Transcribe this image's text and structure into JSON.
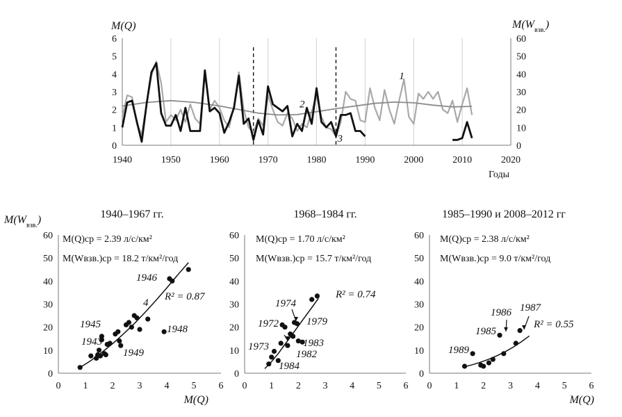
{
  "chart_data": [
    {
      "type": "line",
      "xlabel": "Годы",
      "ylabel_left": "M(Q)",
      "ylabel_right": "M(W",
      "ylabel_right_sub": "взв.",
      "ylabel_right_close": ")",
      "xlim": [
        1940,
        2020
      ],
      "xticks": [
        "1940",
        "1950",
        "1960",
        "1970",
        "1980",
        "1990",
        "2000",
        "2010",
        "2020"
      ],
      "ylim_left": [
        0,
        6
      ],
      "yticks_left": [
        "0",
        "1",
        "2",
        "3",
        "4",
        "5",
        "6"
      ],
      "ylim_right": [
        0,
        60
      ],
      "yticks_right": [
        "0",
        "10",
        "20",
        "30",
        "40",
        "50",
        "60"
      ],
      "grid": "vertical",
      "markers": [
        1967,
        1984
      ],
      "curve_labels": [
        "1",
        "2",
        "3"
      ],
      "series": [
        {
          "id": "1",
          "color": "#a9a9a9",
          "axis": "left",
          "x": [
            1940,
            1941,
            1942,
            1943,
            1944,
            1945,
            1946,
            1947,
            1948,
            1949,
            1950,
            1951,
            1952,
            1953,
            1954,
            1955,
            1956,
            1957,
            1958,
            1959,
            1960,
            1961,
            1962,
            1963,
            1964,
            1965,
            1966,
            1967,
            1968,
            1969,
            1970,
            1971,
            1972,
            1973,
            1974,
            1975,
            1976,
            1977,
            1978,
            1979,
            1980,
            1981,
            1982,
            1983,
            1984,
            1985,
            1986,
            1987,
            1988,
            1989,
            1990,
            1991,
            1992,
            1993,
            1994,
            1995,
            1996,
            1997,
            1998,
            1999,
            2000,
            2001,
            2002,
            2003,
            2004,
            2005,
            2006,
            2007,
            2008,
            2009,
            2010,
            2011,
            2012
          ],
          "values": [
            1.6,
            2.8,
            2.7,
            1.2,
            0.6,
            2.3,
            3.9,
            4.7,
            3.5,
            1.3,
            1.7,
            1.4,
            2.0,
            1.3,
            2.3,
            1.5,
            1.2,
            4.0,
            2.0,
            2.5,
            2.1,
            1.4,
            1.0,
            2.2,
            4.1,
            2.0,
            1.0,
            0.7,
            1.5,
            1.1,
            2.8,
            2.0,
            1.3,
            1.1,
            1.8,
            1.5,
            0.8,
            1.2,
            1.0,
            1.9,
            2.8,
            1.6,
            1.0,
            0.9,
            0.5,
            1.3,
            3.0,
            2.6,
            2.5,
            1.4,
            1.3,
            3.2,
            2.1,
            1.4,
            3.1,
            2.0,
            1.2,
            2.5,
            3.7,
            1.6,
            1.2,
            2.9,
            2.6,
            3.0,
            2.6,
            3.0,
            2.0,
            1.8,
            2.5,
            1.3,
            2.3,
            3.2,
            1.7
          ]
        },
        {
          "id": "2",
          "color": "#8a8a8a",
          "axis": "left",
          "x": [
            1940,
            1945,
            1950,
            1955,
            1960,
            1965,
            1968,
            1972,
            1976,
            1980,
            1984,
            1988,
            1992,
            1996,
            2000,
            2004,
            2008,
            2012
          ],
          "values": [
            2.2,
            2.4,
            2.5,
            2.4,
            2.2,
            1.95,
            1.8,
            1.7,
            1.72,
            1.88,
            2.05,
            2.2,
            2.35,
            2.42,
            2.38,
            2.25,
            2.15,
            2.18
          ]
        },
        {
          "id": "3",
          "color": "#111111",
          "axis": "left",
          "x": [
            1940,
            1941,
            1942,
            1943,
            1944,
            1945,
            1946,
            1947,
            1948,
            1949,
            1950,
            1951,
            1952,
            1953,
            1954,
            1955,
            1956,
            1957,
            1958,
            1959,
            1960,
            1961,
            1962,
            1963,
            1964,
            1965,
            1966,
            1967,
            1968,
            1969,
            1970,
            1971,
            1972,
            1973,
            1974,
            1975,
            1976,
            1977,
            1978,
            1979,
            1980,
            1981,
            1982,
            1983,
            1984,
            1985,
            1986,
            1987,
            1988,
            1989,
            1990
          ],
          "values": [
            1.0,
            2.4,
            2.5,
            1.3,
            0.2,
            2.3,
            4.1,
            4.6,
            1.8,
            1.1,
            1.1,
            1.7,
            0.8,
            2.1,
            0.8,
            0.8,
            0.8,
            4.2,
            1.9,
            2.1,
            1.8,
            0.7,
            1.3,
            2.1,
            3.9,
            1.2,
            1.5,
            0.3,
            1.4,
            0.6,
            3.3,
            2.3,
            2.1,
            1.9,
            2.2,
            0.5,
            1.2,
            0.8,
            2.1,
            1.2,
            3.2,
            1.3,
            1.0,
            1.3,
            0.5,
            1.7,
            1.7,
            1.8,
            0.8,
            0.8,
            0.5
          ]
        },
        {
          "id": "3b",
          "color": "#111111",
          "axis": "left",
          "x": [
            2008,
            2009,
            2010,
            2011,
            2012
          ],
          "values": [
            0.3,
            0.3,
            0.4,
            1.3,
            0.4
          ]
        }
      ]
    },
    {
      "type": "scatter",
      "title": "1940–1967 гг.",
      "xlabel": "M(Q)",
      "ylabel": "M(W",
      "ylabel_sub": "взв.",
      "ylabel_close": ")",
      "xlim": [
        0,
        6
      ],
      "ylim": [
        0,
        60
      ],
      "xticks": [
        "0",
        "1",
        "2",
        "3",
        "4",
        "5",
        "6"
      ],
      "yticks": [
        "0",
        "10",
        "20",
        "30",
        "40",
        "50",
        "60"
      ],
      "stats_line1": "M(Q)ср = 2.39 л/с/км²",
      "stats_line2": "M(Wвзв.)ср = 18.2 т/км²/год",
      "r2": "R² = 0.87",
      "x": [
        0.8,
        1.2,
        1.4,
        1.45,
        1.55,
        1.6,
        1.6,
        1.7,
        1.75,
        1.5,
        1.8,
        1.9,
        2.1,
        2.2,
        2.25,
        2.3,
        2.5,
        2.6,
        2.7,
        2.8,
        2.9,
        3.0,
        3.3,
        3.9,
        4.1,
        4.2,
        4.8
      ],
      "values": [
        2.5,
        7.5,
        6.5,
        8.0,
        7.5,
        16.0,
        14.5,
        8.5,
        8.0,
        10.0,
        12.5,
        13.0,
        17.0,
        18.0,
        14.0,
        12.0,
        21.0,
        22.0,
        20.0,
        25.0,
        24.0,
        19.0,
        23.5,
        18.0,
        41.0,
        40.0,
        45.0
      ],
      "fit_x": [
        0.8,
        1.2,
        1.6,
        2.0,
        2.4,
        2.8,
        3.2,
        3.6,
        4.0,
        4.4,
        4.8
      ],
      "fit_y": [
        2.5,
        5.5,
        9.0,
        12.8,
        17.0,
        21.5,
        26.4,
        31.6,
        37.0,
        42.6,
        48.0
      ],
      "year_labels": [
        "1945",
        "1943",
        "1949",
        "1946",
        "4",
        "1948"
      ]
    },
    {
      "type": "scatter",
      "title": "1968–1984 гг.",
      "xlabel": "",
      "xlim": [
        0,
        6
      ],
      "ylim": [
        0,
        60
      ],
      "xticks": [
        "0",
        "1",
        "2",
        "3",
        "4",
        "5",
        "6"
      ],
      "yticks": [
        "0",
        "10",
        "20",
        "30",
        "40",
        "50",
        "60"
      ],
      "stats_line1": "M(Q)ср = 1.70 л/с/км²",
      "stats_line2": "M(Wвзв.)ср = 15.7 т/км²/год",
      "r2": "R² = 0.74",
      "x": [
        0.9,
        1.0,
        1.1,
        1.25,
        1.35,
        1.4,
        1.5,
        1.6,
        1.7,
        1.8,
        1.85,
        1.95,
        2.0,
        2.15,
        2.5,
        2.7
      ],
      "values": [
        4.0,
        7.0,
        9.5,
        5.5,
        13.0,
        21.0,
        20.0,
        12.0,
        17.0,
        16.0,
        22.0,
        21.5,
        14.0,
        13.5,
        32.0,
        33.5
      ],
      "fit_x": [
        0.75,
        1.0,
        1.25,
        1.5,
        1.75,
        2.0,
        2.25,
        2.5,
        2.75
      ],
      "fit_y": [
        2.0,
        5.0,
        8.5,
        12.5,
        16.5,
        20.5,
        24.5,
        28.5,
        32.5
      ],
      "year_labels": [
        "1974",
        "1972",
        "1979",
        "1973",
        "1983",
        "1982",
        "1984"
      ]
    },
    {
      "type": "scatter",
      "title": "1985–1990 и 2008–2012 гг",
      "xlabel": "M(Q)",
      "xlim": [
        0,
        6
      ],
      "ylim": [
        0,
        60
      ],
      "xticks": [
        "0",
        "1",
        "2",
        "3",
        "4",
        "5",
        "6"
      ],
      "yticks": [
        "0",
        "10",
        "20",
        "30",
        "40",
        "50",
        "60"
      ],
      "stats_line1": "M(Q)ср = 2.38 л/с/км²",
      "stats_line2": "M(Wвзв.)ср = 9.0 т/км²/год",
      "r2": "R² = 0.55",
      "x": [
        1.3,
        1.6,
        1.9,
        2.0,
        2.2,
        2.35,
        2.6,
        2.75,
        3.2,
        3.35
      ],
      "values": [
        3.0,
        8.5,
        3.5,
        3.0,
        4.5,
        6.0,
        16.5,
        8.5,
        13.0,
        18.5
      ],
      "fit_x": [
        1.3,
        1.6,
        1.9,
        2.2,
        2.5,
        2.8,
        3.1,
        3.4,
        3.7
      ],
      "fit_y": [
        2.8,
        3.7,
        4.8,
        6.1,
        7.6,
        9.3,
        11.3,
        13.6,
        16.2
      ],
      "year_labels": [
        "1986",
        "1987",
        "1985",
        "1989"
      ]
    }
  ]
}
